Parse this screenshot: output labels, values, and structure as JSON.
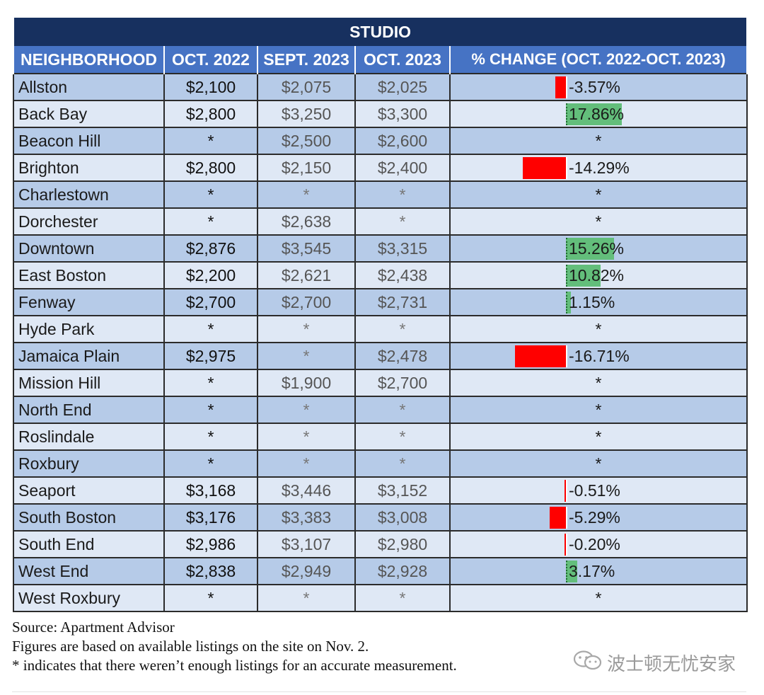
{
  "table": {
    "title": "STUDIO",
    "headers": {
      "neighborhood": "NEIGHBORHOOD",
      "oct2022": "OCT. 2022",
      "sept2023": "SEPT. 2023",
      "oct2023": "OCT. 2023",
      "pct_change": "% CHANGE (OCT. 2022-OCT. 2023)"
    },
    "rows": [
      {
        "name": "Allston",
        "oct2022": "$2,100",
        "sept2023": "$2,075",
        "oct2023": "$2,025",
        "pct": "-3.57%",
        "pct_value": -3.57
      },
      {
        "name": "Back Bay",
        "oct2022": "$2,800",
        "sept2023": "$3,250",
        "oct2023": "$3,300",
        "pct": "17.86%",
        "pct_value": 17.86
      },
      {
        "name": "Beacon Hill",
        "oct2022": "*",
        "sept2023": "$2,500",
        "oct2023": "$2,600",
        "pct": "*",
        "pct_value": null
      },
      {
        "name": "Brighton",
        "oct2022": "$2,800",
        "sept2023": "$2,150",
        "oct2023": "$2,400",
        "pct": "-14.29%",
        "pct_value": -14.29
      },
      {
        "name": "Charlestown",
        "oct2022": "*",
        "sept2023": "*",
        "oct2023": "*",
        "pct": "*",
        "pct_value": null
      },
      {
        "name": "Dorchester",
        "oct2022": "*",
        "sept2023": "$2,638",
        "oct2023": "*",
        "pct": "*",
        "pct_value": null
      },
      {
        "name": "Downtown",
        "oct2022": "$2,876",
        "sept2023": "$3,545",
        "oct2023": "$3,315",
        "pct": "15.26%",
        "pct_value": 15.26
      },
      {
        "name": "East Boston",
        "oct2022": "$2,200",
        "sept2023": "$2,621",
        "oct2023": "$2,438",
        "pct": "10.82%",
        "pct_value": 10.82
      },
      {
        "name": "Fenway",
        "oct2022": "$2,700",
        "sept2023": "$2,700",
        "oct2023": "$2,731",
        "pct": "1.15%",
        "pct_value": 1.15
      },
      {
        "name": "Hyde Park",
        "oct2022": "*",
        "sept2023": "*",
        "oct2023": "*",
        "pct": "*",
        "pct_value": null
      },
      {
        "name": "Jamaica Plain",
        "oct2022": "$2,975",
        "sept2023": "*",
        "oct2023": "$2,478",
        "pct": "-16.71%",
        "pct_value": -16.71
      },
      {
        "name": "Mission Hill",
        "oct2022": "*",
        "sept2023": "$1,900",
        "oct2023": "$2,700",
        "pct": "*",
        "pct_value": null
      },
      {
        "name": "North End",
        "oct2022": "*",
        "sept2023": "*",
        "oct2023": "*",
        "pct": "*",
        "pct_value": null
      },
      {
        "name": "Roslindale",
        "oct2022": "*",
        "sept2023": "*",
        "oct2023": "*",
        "pct": "*",
        "pct_value": null
      },
      {
        "name": "Roxbury",
        "oct2022": "*",
        "sept2023": "*",
        "oct2023": "*",
        "pct": "*",
        "pct_value": null
      },
      {
        "name": "Seaport",
        "oct2022": "$3,168",
        "sept2023": "$3,446",
        "oct2023": "$3,152",
        "pct": "-0.51%",
        "pct_value": -0.51
      },
      {
        "name": "South Boston",
        "oct2022": "$3,176",
        "sept2023": "$3,383",
        "oct2023": "$3,008",
        "pct": "-5.29%",
        "pct_value": -5.29
      },
      {
        "name": "South End",
        "oct2022": "$2,986",
        "sept2023": "$3,107",
        "oct2023": "$2,980",
        "pct": "-0.20%",
        "pct_value": -0.2
      },
      {
        "name": "West End",
        "oct2022": "$2,838",
        "sept2023": "$2,949",
        "oct2023": "$2,928",
        "pct": "3.17%",
        "pct_value": 3.17
      },
      {
        "name": "West Roxbury",
        "oct2022": "*",
        "sept2023": "*",
        "oct2023": "*",
        "pct": "*",
        "pct_value": null
      }
    ]
  },
  "footer": {
    "source": "Source: Apartment Advisor",
    "note1": "Figures are based on available listings on the site on Nov. 2.",
    "note2": "* indicates that there weren’t enough listings for an accurate measurement."
  },
  "watermark": {
    "text": "波士顿无忧安家",
    "icon": "wechat-icon"
  },
  "colors": {
    "title_bg": "#17305f",
    "header_bg": "#4673c4",
    "row_dark": "#b6cbe8",
    "row_light": "#dfe8f5",
    "bar_negative": "#ff0000",
    "bar_positive": "#63be7b"
  }
}
